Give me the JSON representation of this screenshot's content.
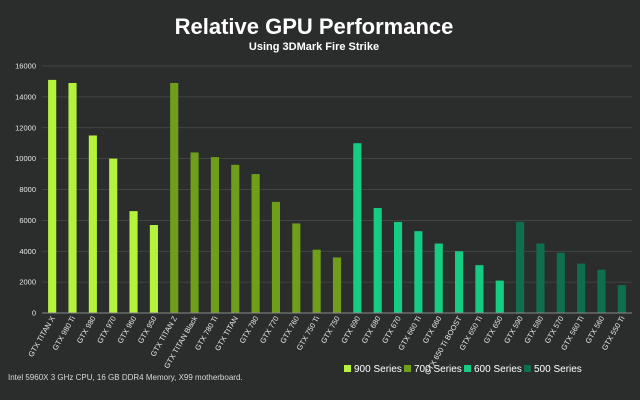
{
  "chart_data": {
    "type": "bar",
    "title": "Relative GPU Performance",
    "subtitle": "Using 3DMark Fire Strike",
    "ylim": [
      0,
      16000
    ],
    "yticks": [
      0,
      2000,
      4000,
      6000,
      8000,
      10000,
      12000,
      14000,
      16000
    ],
    "grid": true,
    "legend_position": "bottom-right",
    "series": [
      {
        "name": "900 Series",
        "color": "#b4f23c",
        "categories": [
          "GTX TITAN X",
          "GTX 980 Ti",
          "GTX 980",
          "GTX 970",
          "GTX 960",
          "GTX 950"
        ],
        "values": [
          15100,
          14900,
          11500,
          10000,
          6600,
          5700
        ]
      },
      {
        "name": "700 Series",
        "color": "#6e9e1a",
        "categories": [
          "GTX TITAN Z",
          "GTX TITAN Black",
          "GTX 780 Ti",
          "GTX TITAN",
          "GTX 780",
          "GTX 770",
          "GTX 760",
          "GTX 750 Ti",
          "GTX 750"
        ],
        "values": [
          14900,
          10400,
          10100,
          9600,
          9000,
          7200,
          5800,
          4100,
          3600
        ]
      },
      {
        "name": "600 Series",
        "color": "#14cc82",
        "categories": [
          "GTX 690",
          "GTX 680",
          "GTX 670",
          "GTX 660 Ti",
          "GTX 660",
          "GTX 650 Ti BOOST",
          "GTX 650 Ti",
          "GTX 650"
        ],
        "values": [
          11000,
          6800,
          5900,
          5300,
          4500,
          4000,
          3100,
          2100
        ]
      },
      {
        "name": "500 Series",
        "color": "#0f6f4c",
        "categories": [
          "GTX 590",
          "GTX 580",
          "GTX 570",
          "GTX 560 Ti",
          "GTX 560",
          "GTX 550 Ti"
        ],
        "values": [
          5900,
          4500,
          3900,
          3200,
          2800,
          1800
        ]
      }
    ]
  },
  "footnote": "Intel 5960X  3 GHz CPU, 16 GB DDR4 Memory, X99 motherboard."
}
